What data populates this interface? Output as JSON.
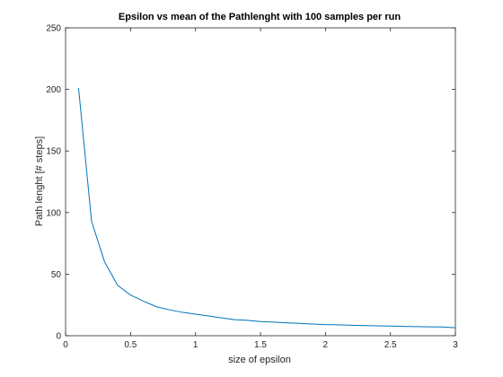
{
  "chart_data": {
    "type": "line",
    "title": "Epsilon vs mean of the Pathlenght with 100 samples per run",
    "xlabel": "size of epsilon",
    "ylabel": "Path lenght [# steps]",
    "xlim": [
      0,
      3
    ],
    "ylim": [
      0,
      250
    ],
    "xticks": [
      0,
      0.5,
      1,
      1.5,
      2,
      2.5,
      3
    ],
    "xtick_labels": [
      "0",
      "0.5",
      "1",
      "1.5",
      "2",
      "2.5",
      "3"
    ],
    "yticks": [
      0,
      50,
      100,
      150,
      200,
      250
    ],
    "ytick_labels": [
      "0",
      "50",
      "100",
      "150",
      "200",
      "250"
    ],
    "grid": false,
    "box": true,
    "series": [
      {
        "color": "#0072BD",
        "x": [
          0.1,
          0.2,
          0.3,
          0.4,
          0.5,
          0.6,
          0.7,
          0.8,
          0.9,
          1.0,
          1.1,
          1.2,
          1.3,
          1.4,
          1.5,
          1.6,
          1.7,
          1.8,
          1.9,
          2.0,
          2.1,
          2.2,
          2.3,
          2.4,
          2.5,
          2.6,
          2.7,
          2.8,
          2.9,
          3.0
        ],
        "y": [
          201,
          93,
          60,
          41,
          33,
          28,
          23.5,
          21,
          19,
          17.5,
          16,
          14.5,
          13,
          12.5,
          11.5,
          11,
          10.5,
          10,
          9.5,
          9,
          8.8,
          8.5,
          8.2,
          8,
          7.8,
          7.6,
          7.4,
          7.2,
          7.1,
          6.5
        ]
      }
    ]
  }
}
